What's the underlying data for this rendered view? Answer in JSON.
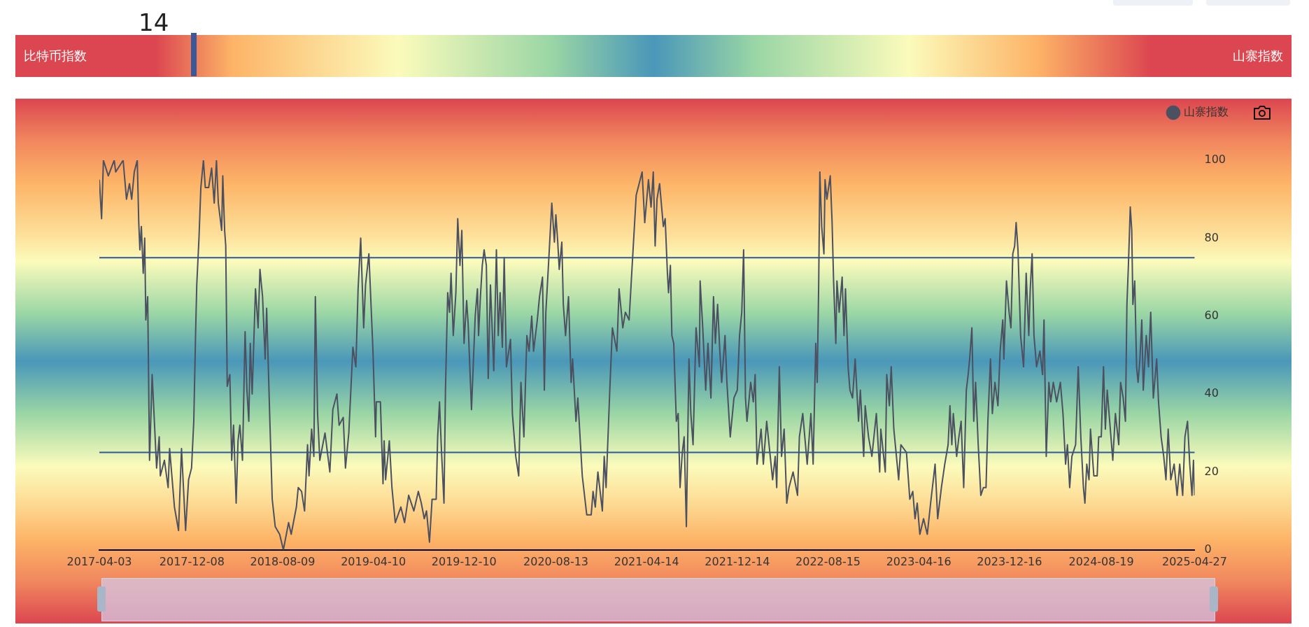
{
  "chart_data": [
    {
      "type": "other",
      "values": [
        14
      ],
      "data_labels": true,
      "annotations": [
        "比特币指数",
        "山寨指数"
      ]
    },
    {
      "type": "line",
      "xlim": [
        "2017-04-03",
        "2025-04-27"
      ],
      "xticks": [
        "2017-04-03",
        "2017-12-08",
        "2018-08-09",
        "2019-04-10",
        "2019-12-10",
        "2020-08-13",
        "2021-04-14",
        "2021-12-14",
        "2022-08-15",
        "2023-04-16",
        "2023-12-16",
        "2024-08-19",
        "2025-04-27"
      ],
      "ylim": [
        0,
        100
      ],
      "yticks": [
        0,
        20,
        40,
        60,
        80,
        100
      ],
      "legend": "top right",
      "ref_lines": [
        {
          "axis": "y",
          "value": 75,
          "color": "#2e5a9c"
        },
        {
          "axis": "y",
          "value": 25,
          "color": "#2e5a9c"
        }
      ],
      "series": [
        {
          "name": "山寨指数",
          "color": "#4b5160",
          "x": [
            "2017-04-03",
            "2017-04-09",
            "2017-04-14",
            "2017-04-27",
            "2017-05-13",
            "2017-05-17",
            "2017-06-06",
            "2017-06-15",
            "2017-06-23",
            "2017-06-29",
            "2017-07-06",
            "2017-07-14",
            "2017-07-18",
            "2017-07-21",
            "2017-07-25",
            "2017-07-30",
            "2017-08-03",
            "2017-08-06",
            "2017-08-11",
            "2017-08-16",
            "2017-08-23",
            "2017-09-04",
            "2017-09-11",
            "2017-09-14",
            "2017-09-25",
            "2017-10-05",
            "2017-10-09",
            "2017-10-22",
            "2017-11-02",
            "2017-11-10",
            "2017-11-21",
            "2017-11-29",
            "2017-12-07",
            "2017-12-13",
            "2017-12-18",
            "2017-12-21",
            "2017-12-27",
            "2018-01-01",
            "2018-01-08",
            "2018-01-13",
            "2018-01-22",
            "2018-01-30",
            "2018-02-06",
            "2018-02-12",
            "2018-02-17",
            "2018-02-26",
            "2018-03-01",
            "2018-03-06",
            "2018-03-09",
            "2018-03-13",
            "2018-03-20",
            "2018-03-25",
            "2018-03-30",
            "2018-04-06",
            "2018-04-11",
            "2018-04-16",
            "2018-04-23",
            "2018-04-30",
            "2018-05-05",
            "2018-05-10",
            "2018-05-14",
            "2018-05-19",
            "2018-05-28",
            "2018-06-04",
            "2018-06-09",
            "2018-06-16",
            "2018-06-23",
            "2018-06-27",
            "2018-07-06",
            "2018-07-12",
            "2018-07-20",
            "2018-08-01",
            "2018-08-11",
            "2018-08-25",
            "2018-09-01",
            "2018-09-15",
            "2018-09-20",
            "2018-09-29",
            "2018-10-07",
            "2018-10-15",
            "2018-10-19",
            "2018-10-26",
            "2018-11-01",
            "2018-11-05",
            "2018-11-11",
            "2018-11-17",
            "2018-12-01",
            "2018-12-14",
            "2018-12-22",
            "2019-01-02",
            "2019-01-08",
            "2019-01-19",
            "2019-01-25",
            "2019-02-03",
            "2019-02-14",
            "2019-02-22",
            "2019-02-28",
            "2019-03-07",
            "2019-03-15",
            "2019-03-20",
            "2019-03-29",
            "2019-04-09",
            "2019-04-16",
            "2019-04-18",
            "2019-04-29",
            "2019-05-06",
            "2019-05-09",
            "2019-05-13",
            "2019-05-23",
            "2019-05-30",
            "2019-06-08",
            "2019-06-23",
            "2019-07-03",
            "2019-07-14",
            "2019-07-28",
            "2019-08-09",
            "2019-08-17",
            "2019-08-25",
            "2019-08-31",
            "2019-09-08",
            "2019-09-15",
            "2019-09-26",
            "2019-09-30",
            "2019-10-05",
            "2019-10-10",
            "2019-10-17",
            "2019-10-21",
            "2019-10-27",
            "2019-11-01",
            "2019-11-05",
            "2019-11-11",
            "2019-11-18",
            "2019-11-23",
            "2019-11-29",
            "2019-12-04",
            "2019-12-10",
            "2019-12-17",
            "2019-12-21",
            "2019-12-30",
            "2020-01-09",
            "2020-01-15",
            "2020-01-18",
            "2020-01-23",
            "2020-01-28",
            "2020-02-02",
            "2020-02-08",
            "2020-02-13",
            "2020-02-19",
            "2020-02-28",
            "2020-03-06",
            "2020-03-11",
            "2020-03-16",
            "2020-03-22",
            "2020-03-27",
            "2020-04-02",
            "2020-04-13",
            "2020-04-18",
            "2020-04-27",
            "2020-05-05",
            "2020-05-11",
            "2020-05-19",
            "2020-05-27",
            "2020-06-02",
            "2020-06-09",
            "2020-06-14",
            "2020-06-24",
            "2020-06-30",
            "2020-07-08",
            "2020-07-13",
            "2020-07-17",
            "2020-07-24",
            "2020-08-02",
            "2020-08-09",
            "2020-08-13",
            "2020-08-18",
            "2020-08-22",
            "2020-08-29",
            "2020-09-02",
            "2020-09-08",
            "2020-09-16",
            "2020-09-23",
            "2020-09-27",
            "2020-10-06",
            "2020-10-11",
            "2020-10-23",
            "2020-11-04",
            "2020-11-16",
            "2020-11-21",
            "2020-11-27",
            "2020-12-04",
            "2020-12-16",
            "2020-12-21",
            "2020-12-26",
            "2021-01-05",
            "2021-01-12",
            "2021-01-24",
            "2021-01-30",
            "2021-02-09",
            "2021-02-16",
            "2021-02-26",
            "2021-03-05",
            "2021-03-17",
            "2021-04-02",
            "2021-04-09",
            "2021-04-19",
            "2021-04-26",
            "2021-05-02",
            "2021-05-07",
            "2021-05-12",
            "2021-05-19",
            "2021-05-29",
            "2021-06-03",
            "2021-06-09",
            "2021-06-12",
            "2021-06-17",
            "2021-06-21",
            "2021-06-26",
            "2021-07-03",
            "2021-07-08",
            "2021-07-13",
            "2021-07-19",
            "2021-07-24",
            "2021-07-30",
            "2021-08-06",
            "2021-08-11",
            "2021-08-17",
            "2021-08-25",
            "2021-09-03",
            "2021-09-05",
            "2021-09-12",
            "2021-09-20",
            "2021-09-26",
            "2021-10-04",
            "2021-10-11",
            "2021-10-16",
            "2021-10-22",
            "2021-10-28",
            "2021-11-02",
            "2021-11-11",
            "2021-11-16",
            "2021-11-25",
            "2021-12-05",
            "2021-12-14",
            "2021-12-20",
            "2021-12-26",
            "2021-12-31",
            "2022-01-05",
            "2022-01-09",
            "2022-01-19",
            "2022-01-26",
            "2022-01-31",
            "2022-02-05",
            "2022-02-16",
            "2022-02-22",
            "2022-03-03",
            "2022-03-19",
            "2022-03-26",
            "2022-03-30",
            "2022-04-06",
            "2022-04-12",
            "2022-04-19",
            "2022-04-26",
            "2022-05-02",
            "2022-05-13",
            "2022-05-25",
            "2022-05-30",
            "2022-06-08",
            "2022-06-20",
            "2022-06-30",
            "2022-07-06",
            "2022-07-13",
            "2022-07-17",
            "2022-07-21",
            "2022-07-24",
            "2022-07-29",
            "2022-08-04",
            "2022-08-07",
            "2022-08-12",
            "2022-08-21",
            "2022-08-26",
            "2022-08-30",
            "2022-09-05",
            "2022-09-08",
            "2022-09-14",
            "2022-09-22",
            "2022-09-27",
            "2022-10-01",
            "2022-10-08",
            "2022-10-13",
            "2022-10-20",
            "2022-10-27",
            "2022-11-05",
            "2022-11-10",
            "2022-11-19",
            "2022-11-23",
            "2022-12-02",
            "2022-12-11",
            "2022-12-23",
            "2023-01-01",
            "2023-01-04",
            "2023-01-16",
            "2023-01-20",
            "2023-01-27",
            "2023-02-01",
            "2023-02-08",
            "2023-02-14",
            "2023-02-21",
            "2023-02-27",
            "2023-03-14",
            "2023-03-23",
            "2023-03-31",
            "2023-04-06",
            "2023-04-12",
            "2023-04-19",
            "2023-04-29",
            "2023-05-09",
            "2023-05-18",
            "2023-05-30",
            "2023-06-06",
            "2023-06-16",
            "2023-06-25",
            "2023-07-04",
            "2023-07-09",
            "2023-07-14",
            "2023-07-18",
            "2023-07-27",
            "2023-08-02",
            "2023-08-08",
            "2023-08-15",
            "2023-08-22",
            "2023-08-27",
            "2023-08-31",
            "2023-09-06",
            "2023-09-11",
            "2023-09-16",
            "2023-09-23",
            "2023-09-30",
            "2023-10-07",
            "2023-10-14",
            "2023-10-19",
            "2023-10-26",
            "2023-10-31",
            "2023-11-07",
            "2023-11-15",
            "2023-11-21",
            "2023-11-28",
            "2023-12-01",
            "2023-12-08",
            "2023-12-15",
            "2023-12-20",
            "2023-12-25",
            "2023-12-30",
            "2024-01-03",
            "2024-01-08",
            "2024-01-15",
            "2024-01-23",
            "2024-01-30",
            "2024-02-06",
            "2024-02-10",
            "2024-02-15",
            "2024-02-20",
            "2024-02-27",
            "2024-03-07",
            "2024-03-14",
            "2024-03-18",
            "2024-03-24",
            "2024-03-31",
            "2024-04-05",
            "2024-04-12",
            "2024-04-21",
            "2024-05-01",
            "2024-05-08",
            "2024-05-15",
            "2024-05-20",
            "2024-05-26",
            "2024-06-01",
            "2024-06-11",
            "2024-06-18",
            "2024-06-25",
            "2024-07-02",
            "2024-07-06",
            "2024-07-11",
            "2024-07-17",
            "2024-07-21",
            "2024-07-30",
            "2024-08-08",
            "2024-08-12",
            "2024-08-19",
            "2024-08-25",
            "2024-08-30",
            "2024-09-04",
            "2024-09-14",
            "2024-09-19",
            "2024-09-26",
            "2024-10-05",
            "2024-10-10",
            "2024-10-17",
            "2024-10-23",
            "2024-10-27",
            "2024-10-31",
            "2024-11-05",
            "2024-11-09",
            "2024-11-12",
            "2024-11-17",
            "2024-11-22",
            "2024-11-26",
            "2024-12-01",
            "2024-12-06",
            "2024-12-10",
            "2024-12-18",
            "2024-12-24",
            "2024-12-30",
            "2025-01-06",
            "2025-01-15",
            "2025-01-20",
            "2025-01-27",
            "2025-02-03",
            "2025-02-09",
            "2025-02-15",
            "2025-02-22",
            "2025-03-03",
            "2025-03-11",
            "2025-03-18",
            "2025-03-26",
            "2025-04-01",
            "2025-04-08",
            "2025-04-14",
            "2025-04-20",
            "2025-04-24",
            "2025-04-27"
          ],
          "values": [
            95,
            85,
            100,
            96,
            100,
            97,
            100,
            90,
            94,
            90,
            97,
            100,
            84,
            77,
            83,
            71,
            80,
            59,
            65,
            23,
            45,
            21,
            29,
            19,
            23,
            16,
            26,
            11,
            5,
            26,
            5,
            18,
            21,
            33,
            56,
            68,
            80,
            93,
            100,
            93,
            93,
            98,
            89,
            100,
            89,
            82,
            96,
            82,
            78,
            42,
            45,
            23,
            32,
            12,
            28,
            32,
            23,
            56,
            41,
            33,
            53,
            40,
            67,
            57,
            72,
            65,
            49,
            62,
            32,
            13,
            6,
            4,
            0,
            7,
            4,
            11,
            16,
            15,
            10,
            27,
            19,
            31,
            24,
            65,
            35,
            23,
            30,
            20,
            36,
            40,
            32,
            34,
            21,
            30,
            52,
            47,
            67,
            80,
            57,
            68,
            76,
            51,
            29,
            38,
            38,
            17,
            28,
            18,
            28,
            16,
            7,
            11,
            7,
            14,
            10,
            15,
            12,
            8,
            10,
            2,
            13,
            13,
            29,
            38,
            26,
            12,
            41,
            66,
            61,
            71,
            55,
            66,
            85,
            73,
            82,
            53,
            64,
            58,
            36,
            60,
            67,
            55,
            65,
            73,
            77,
            73,
            44,
            68,
            46,
            77,
            55,
            66,
            52,
            75,
            47,
            54,
            35,
            24,
            19,
            43,
            29,
            55,
            51,
            60,
            51,
            59,
            65,
            70,
            41,
            61,
            73,
            89,
            79,
            86,
            79,
            72,
            79,
            63,
            55,
            65,
            43,
            49,
            33,
            39,
            19,
            9,
            9,
            15,
            11,
            20,
            10,
            24,
            16,
            41,
            57,
            51,
            67,
            57,
            61,
            59,
            71,
            91,
            97,
            84,
            95,
            88,
            97,
            78,
            90,
            94,
            83,
            85,
            71,
            66,
            73,
            55,
            53,
            33,
            35,
            16,
            25,
            29,
            6,
            49,
            35,
            27,
            57,
            47,
            69,
            57,
            41,
            53,
            39,
            65,
            53,
            63,
            51,
            43,
            55,
            43,
            29,
            39,
            41,
            55,
            61,
            77,
            39,
            33,
            43,
            38,
            45,
            22,
            31,
            22,
            33,
            18,
            24,
            16,
            47,
            24,
            31,
            12,
            16,
            20,
            14,
            29,
            35,
            22,
            35,
            22,
            53,
            43,
            69,
            97,
            83,
            76,
            95,
            90,
            96,
            84,
            69,
            53,
            69,
            61,
            70,
            55,
            67,
            47,
            41,
            39,
            49,
            33,
            41,
            24,
            37,
            29,
            24,
            35,
            20,
            31,
            20,
            45,
            37,
            47,
            31,
            25,
            18,
            27,
            25,
            13,
            15,
            8,
            12,
            4,
            8,
            4,
            12,
            22,
            8,
            16,
            22,
            27,
            37,
            27,
            35,
            24,
            29,
            33,
            16,
            41,
            45,
            49,
            57,
            33,
            43,
            27,
            14,
            16,
            16,
            33,
            49,
            35,
            43,
            37,
            51,
            59,
            49,
            69,
            61,
            57,
            76,
            78,
            84,
            77,
            55,
            47,
            71,
            55,
            67,
            76,
            55,
            47,
            51,
            45,
            59,
            24,
            43,
            38,
            43,
            38,
            43,
            35,
            22,
            27,
            16,
            24,
            27,
            47,
            29,
            16,
            12,
            22,
            18,
            31,
            19,
            19,
            29,
            29,
            47,
            31,
            41,
            29,
            23,
            35,
            27,
            43,
            39,
            33,
            63,
            73,
            88,
            82,
            63,
            69,
            47,
            43,
            49,
            59,
            41,
            55,
            47,
            61,
            39,
            49,
            38,
            29,
            24,
            18,
            31,
            18,
            22,
            14,
            22,
            14,
            29,
            33,
            22,
            14,
            23,
            14
          ]
        }
      ]
    }
  ]
}
